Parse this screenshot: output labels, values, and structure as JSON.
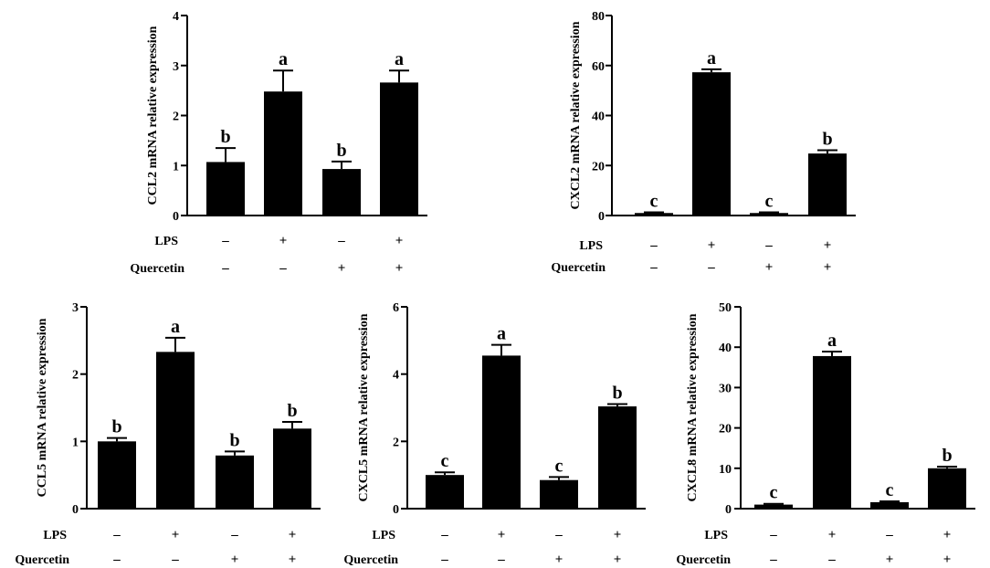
{
  "colors": {
    "bar": "#000000",
    "axis": "#000000",
    "background": "#ffffff"
  },
  "row_labels": {
    "lps": "LPS",
    "quercetin": "Quercetin"
  },
  "chart_data": [
    {
      "type": "bar",
      "name": "ccl2",
      "ylabel": "CCL2 mRNA relative expression",
      "ylim": [
        0,
        4
      ],
      "yticks": [
        "0",
        "1",
        "2",
        "3",
        "4"
      ],
      "tick_values": [
        0,
        1,
        2,
        3,
        4
      ],
      "categories": [
        "ctrl",
        "lps",
        "quercetin",
        "lps-quercetin"
      ],
      "values": [
        1.07,
        2.48,
        0.93,
        2.66
      ],
      "errors": [
        0.28,
        0.42,
        0.15,
        0.24
      ],
      "letters": [
        "b",
        "a",
        "b",
        "a"
      ],
      "lps": [
        "–",
        "+",
        "–",
        "+"
      ],
      "quercetin": [
        "–",
        "–",
        "+",
        "+"
      ]
    },
    {
      "type": "bar",
      "name": "cxcl2",
      "ylabel": "CXCL2 mRNA relative expression",
      "ylim": [
        0,
        80
      ],
      "yticks": [
        "0",
        "20",
        "40",
        "60",
        "80"
      ],
      "tick_values": [
        0,
        20,
        40,
        60,
        80
      ],
      "categories": [
        "ctrl",
        "lps",
        "quercetin",
        "lps-quercetin"
      ],
      "values": [
        1.0,
        57.3,
        1.0,
        24.8
      ],
      "errors": [
        0.3,
        1.2,
        0.3,
        1.3
      ],
      "letters": [
        "c",
        "a",
        "c",
        "b"
      ],
      "lps": [
        "–",
        "+",
        "–",
        "+"
      ],
      "quercetin": [
        "–",
        "–",
        "+",
        "+"
      ]
    },
    {
      "type": "bar",
      "name": "ccl5",
      "ylabel": "CCL5 mRNA relative expression",
      "ylim": [
        0,
        3
      ],
      "yticks": [
        "0",
        "1",
        "2",
        "3"
      ],
      "tick_values": [
        0,
        1,
        2,
        3
      ],
      "categories": [
        "ctrl",
        "lps",
        "quercetin",
        "lps-quercetin"
      ],
      "values": [
        1.0,
        2.33,
        0.79,
        1.19
      ],
      "errors": [
        0.05,
        0.21,
        0.06,
        0.1
      ],
      "letters": [
        "b",
        "a",
        "b",
        "b"
      ],
      "lps": [
        "–",
        "+",
        "–",
        "+"
      ],
      "quercetin": [
        "–",
        "–",
        "+",
        "+"
      ]
    },
    {
      "type": "bar",
      "name": "cxcl5",
      "ylabel": "CXCL5 mRNA relative expression",
      "ylim": [
        0,
        6
      ],
      "yticks": [
        "0",
        "2",
        "4",
        "6"
      ],
      "tick_values": [
        0,
        2,
        4,
        6
      ],
      "categories": [
        "ctrl",
        "lps",
        "quercetin",
        "lps-quercetin"
      ],
      "values": [
        1.0,
        4.55,
        0.85,
        3.04
      ],
      "errors": [
        0.08,
        0.32,
        0.09,
        0.07
      ],
      "letters": [
        "c",
        "a",
        "c",
        "b"
      ],
      "lps": [
        "–",
        "+",
        "–",
        "+"
      ],
      "quercetin": [
        "–",
        "–",
        "+",
        "+"
      ]
    },
    {
      "type": "bar",
      "name": "cxcl8",
      "ylabel": "CXCL8 mRNA relative expression",
      "ylim": [
        0,
        50
      ],
      "yticks": [
        "0",
        "10",
        "20",
        "30",
        "40",
        "50"
      ],
      "tick_values": [
        0,
        10,
        20,
        30,
        40,
        50
      ],
      "categories": [
        "ctrl",
        "lps",
        "quercetin",
        "lps-quercetin"
      ],
      "values": [
        1.0,
        37.8,
        1.6,
        10.0
      ],
      "errors": [
        0.2,
        1.1,
        0.2,
        0.4
      ],
      "letters": [
        "c",
        "a",
        "c",
        "b"
      ],
      "lps": [
        "–",
        "+",
        "–",
        "+"
      ],
      "quercetin": [
        "–",
        "–",
        "+",
        "+"
      ]
    }
  ]
}
